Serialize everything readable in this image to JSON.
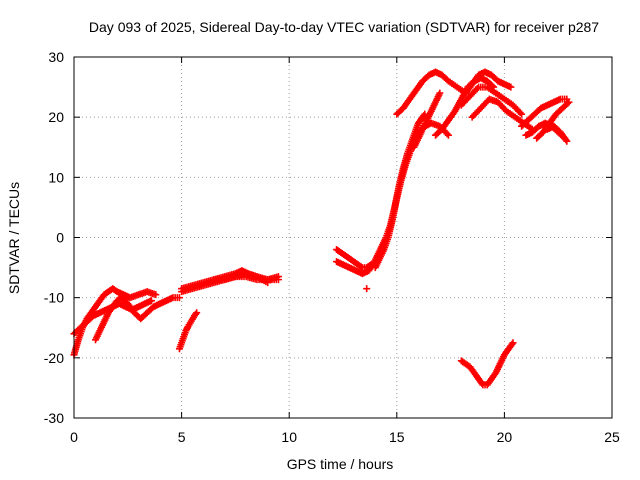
{
  "chart_data": {
    "type": "scatter",
    "title": "Day 093 of 2025, Sidereal Day-to-day VTEC variation (SDTVAR) for receiver p287",
    "xlabel": "GPS time / hours",
    "ylabel": "SDTVAR / TECUs",
    "xlim": [
      0,
      25
    ],
    "ylim": [
      -30,
      30
    ],
    "xticks": [
      0,
      5,
      10,
      15,
      20,
      25
    ],
    "yticks": [
      -30,
      -20,
      -10,
      0,
      10,
      20,
      30
    ],
    "grid": true,
    "marker": "+",
    "series_color": "#ff0000",
    "series": [
      {
        "name": "arc-1",
        "x": [
          0.0,
          0.2,
          0.4,
          0.6,
          0.8,
          1.0,
          1.2,
          1.4,
          1.6,
          1.8,
          2.0,
          2.3,
          2.6,
          3.0,
          3.4,
          3.8
        ],
        "y": [
          -19.5,
          -17.0,
          -15.0,
          -13.5,
          -12.5,
          -11.5,
          -10.5,
          -9.5,
          -9.0,
          -8.5,
          -9.0,
          -9.5,
          -10.0,
          -9.5,
          -9.0,
          -9.5
        ]
      },
      {
        "name": "arc-2",
        "x": [
          0.0,
          0.3,
          0.6,
          0.9,
          1.2,
          1.5,
          1.8,
          2.1,
          2.4,
          2.7,
          3.0,
          3.3,
          3.6
        ],
        "y": [
          -16.0,
          -15.0,
          -14.0,
          -13.0,
          -12.5,
          -12.0,
          -11.5,
          -11.0,
          -11.5,
          -12.0,
          -11.5,
          -11.0,
          -10.5
        ]
      },
      {
        "name": "arc-3",
        "x": [
          1.0,
          1.2,
          1.4,
          1.6,
          1.8,
          2.0,
          2.2,
          2.5,
          2.8,
          3.1,
          3.4,
          3.7,
          4.0,
          4.3,
          4.6,
          4.9
        ],
        "y": [
          -17.0,
          -15.5,
          -14.0,
          -12.5,
          -11.5,
          -10.5,
          -10.0,
          -11.0,
          -12.5,
          -13.5,
          -12.5,
          -11.5,
          -11.0,
          -10.5,
          -10.0,
          -10.0
        ]
      },
      {
        "name": "arc-4",
        "x": [
          5.0,
          5.5,
          6.0,
          6.5,
          7.0,
          7.5,
          8.0,
          8.5,
          9.0,
          9.5
        ],
        "y": [
          -8.5,
          -8.0,
          -7.5,
          -7.0,
          -7.0,
          -6.5,
          -6.5,
          -7.0,
          -7.0,
          -7.0
        ]
      },
      {
        "name": "arc-5",
        "x": [
          5.0,
          5.5,
          6.0,
          6.5,
          7.0,
          7.5,
          8.0,
          8.5,
          9.0
        ],
        "y": [
          -9.0,
          -8.5,
          -8.0,
          -7.5,
          -7.0,
          -6.5,
          -6.0,
          -6.5,
          -7.5
        ]
      },
      {
        "name": "arc-6",
        "x": [
          6.5,
          7.0,
          7.5,
          7.8,
          8.1,
          8.5,
          9.0,
          9.5
        ],
        "y": [
          -7.0,
          -6.5,
          -6.0,
          -5.5,
          -6.0,
          -6.5,
          -7.0,
          -6.5
        ]
      },
      {
        "name": "arc-7",
        "x": [
          4.9,
          5.0,
          5.1,
          5.2,
          5.3,
          5.4,
          5.5,
          5.6,
          5.7
        ],
        "y": [
          -18.5,
          -17.5,
          -16.5,
          -15.5,
          -14.8,
          -14.2,
          -13.6,
          -13.0,
          -12.5
        ]
      },
      {
        "name": "arc-8",
        "x": [
          12.2,
          12.4,
          12.6,
          12.8,
          13.0,
          13.2,
          13.4,
          13.6,
          13.8
        ],
        "y": [
          -2.0,
          -2.5,
          -3.0,
          -3.5,
          -4.0,
          -4.5,
          -5.0,
          -5.0,
          -4.5
        ]
      },
      {
        "name": "arc-9",
        "x": [
          12.2,
          12.5,
          12.8,
          13.1,
          13.4,
          13.7,
          13.9,
          14.1,
          14.3,
          14.5,
          14.7,
          14.9,
          15.1,
          15.3,
          15.5,
          15.8,
          16.0,
          16.3
        ],
        "y": [
          -4.0,
          -4.5,
          -5.0,
          -5.5,
          -6.0,
          -5.5,
          -4.5,
          -3.0,
          -1.5,
          0.0,
          2.0,
          5.0,
          8.5,
          11.5,
          14.0,
          17.0,
          19.0,
          20.5
        ]
      },
      {
        "name": "arc-10",
        "x": [
          14.0,
          14.2,
          14.4,
          14.6,
          14.8,
          15.0,
          15.2,
          15.4,
          15.6,
          15.8,
          16.0,
          16.3,
          16.6,
          17.0,
          17.4
        ],
        "y": [
          -5.0,
          -3.5,
          -2.0,
          0.0,
          3.0,
          6.5,
          9.5,
          12.0,
          14.0,
          16.0,
          17.5,
          18.5,
          19.0,
          18.5,
          17.0
        ]
      },
      {
        "name": "arc-11",
        "x": [
          13.6
        ],
        "y": [
          -8.5
        ]
      },
      {
        "name": "arc-12",
        "x": [
          15.0,
          15.3,
          15.6,
          15.9,
          16.2,
          16.5,
          16.8,
          17.1,
          17.4,
          17.8,
          18.2
        ],
        "y": [
          20.5,
          21.5,
          23.0,
          24.5,
          26.0,
          27.0,
          27.5,
          27.0,
          26.0,
          25.0,
          24.0
        ]
      },
      {
        "name": "arc-13",
        "x": [
          15.8,
          16.0,
          16.2,
          16.4,
          16.6,
          16.8,
          17.0
        ],
        "y": [
          15.0,
          16.5,
          18.0,
          19.5,
          21.0,
          22.5,
          24.0
        ]
      },
      {
        "name": "arc-14",
        "x": [
          16.8,
          17.1,
          17.4,
          17.7,
          18.0,
          18.3,
          18.6,
          18.9,
          19.2,
          19.5
        ],
        "y": [
          17.0,
          18.0,
          19.5,
          21.0,
          23.0,
          25.0,
          26.0,
          26.5,
          26.0,
          25.0
        ]
      },
      {
        "name": "arc-15",
        "x": [
          18.2,
          18.5,
          18.8,
          19.1,
          19.4,
          19.7,
          20.0,
          20.3
        ],
        "y": [
          24.0,
          25.5,
          27.0,
          27.5,
          27.0,
          26.0,
          25.5,
          25.0
        ]
      },
      {
        "name": "arc-16",
        "x": [
          18.0,
          18.4,
          18.8,
          19.2,
          19.6,
          20.0,
          20.4,
          20.8
        ],
        "y": [
          22.0,
          23.5,
          25.0,
          25.0,
          24.0,
          23.0,
          22.0,
          20.5
        ]
      },
      {
        "name": "arc-17",
        "x": [
          18.5,
          18.9,
          19.3,
          19.7,
          20.1,
          20.5,
          20.9,
          21.3
        ],
        "y": [
          20.0,
          21.5,
          23.0,
          22.5,
          21.0,
          20.0,
          19.0,
          18.0
        ]
      },
      {
        "name": "arc-18",
        "x": [
          20.8,
          21.1,
          21.4,
          21.7,
          22.0,
          22.3,
          22.6,
          22.9
        ],
        "y": [
          18.5,
          19.5,
          20.5,
          21.5,
          22.0,
          22.5,
          23.0,
          23.0
        ]
      },
      {
        "name": "arc-19",
        "x": [
          21.0,
          21.3,
          21.6,
          21.9,
          22.2,
          22.5,
          22.8
        ],
        "y": [
          17.0,
          17.5,
          18.5,
          19.0,
          18.5,
          17.5,
          16.5
        ]
      },
      {
        "name": "arc-20",
        "x": [
          21.5,
          21.8,
          22.1,
          22.4,
          22.7,
          23.0
        ],
        "y": [
          16.5,
          17.5,
          19.0,
          20.5,
          21.5,
          22.5
        ]
      },
      {
        "name": "arc-21",
        "x": [
          22.0,
          22.3,
          22.6,
          22.9
        ],
        "y": [
          18.0,
          18.5,
          17.5,
          16.0
        ]
      },
      {
        "name": "arc-22",
        "x": [
          18.0,
          18.2,
          18.4,
          18.6,
          18.8,
          19.0,
          19.2,
          19.4,
          19.6,
          19.8,
          20.0,
          20.2,
          20.4
        ],
        "y": [
          -20.5,
          -21.0,
          -21.5,
          -22.5,
          -23.5,
          -24.5,
          -24.5,
          -23.5,
          -22.5,
          -21.0,
          -19.5,
          -18.5,
          -17.5
        ]
      }
    ]
  }
}
